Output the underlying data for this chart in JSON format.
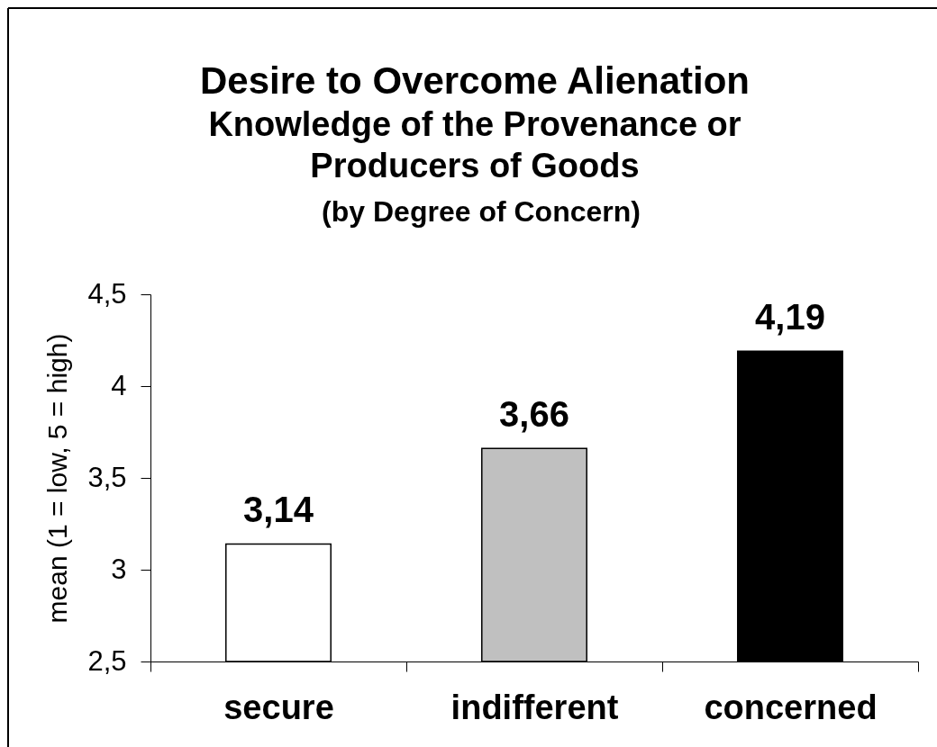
{
  "chart_data": {
    "type": "bar",
    "title": "Desire to Overcome Alienation",
    "subtitle": "Knowledge of the Provenance or Producers of Goods",
    "annotations": [
      "(by Degree of Concern)"
    ],
    "ylabel": "mean (1 = low, 5 = high)",
    "categories": [
      "secure",
      "indifferent",
      "concerned"
    ],
    "values": [
      3.14,
      3.66,
      4.19
    ],
    "colors": [
      "#ffffff",
      "#c0c0c0",
      "#000000"
    ],
    "value_labels": [
      "3,14",
      "3,66",
      "4,19"
    ],
    "ylim": [
      2.5,
      4.5
    ],
    "yticks": [
      {
        "value": 2.5,
        "label": "2,5"
      },
      3,
      {
        "value": 3.5,
        "label": "3,5"
      },
      4,
      {
        "value": 4.5,
        "label": "4,5"
      }
    ],
    "grid": false
  }
}
